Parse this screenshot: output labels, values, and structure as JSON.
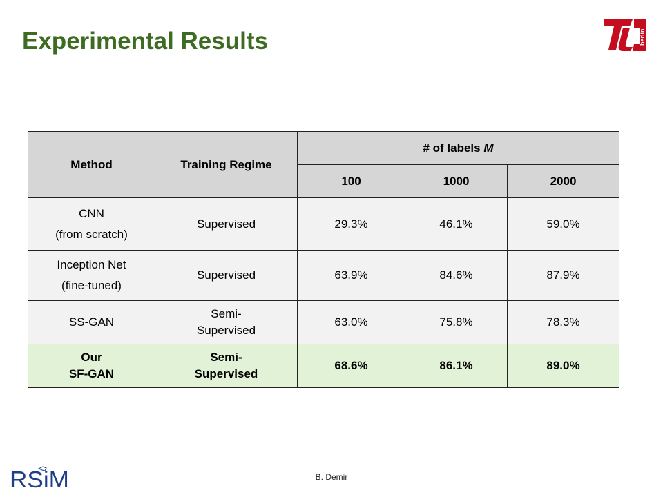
{
  "title": "Experimental Results",
  "logo_icon": "tu-berlin-logo",
  "logo_text": "berlin",
  "table": {
    "headers": {
      "method": "Method",
      "regime": "Training Regime",
      "labels_prefix": "# of labels ",
      "labels_var": "M",
      "sizes": [
        "100",
        "1000",
        "2000"
      ]
    },
    "rows": [
      {
        "method_l1": "CNN",
        "method_l2": "(from scratch)",
        "regime_l1": "Supervised",
        "regime_l2": "",
        "v100": "29.3%",
        "v1000": "46.1%",
        "v2000": "59.0%"
      },
      {
        "method_l1": "Inception Net",
        "method_l2": "(fine-tuned)",
        "regime_l1": "Supervised",
        "regime_l2": "",
        "v100": "63.9%",
        "v1000": "84.6%",
        "v2000": "87.9%"
      },
      {
        "method_l1": "SS-GAN",
        "method_l2": "",
        "regime_l1": "Semi-",
        "regime_l2": "Supervised",
        "v100": "63.0%",
        "v1000": "75.8%",
        "v2000": "78.3%"
      },
      {
        "method_l1": "Our",
        "method_l2": "SF-GAN",
        "regime_l1": "Semi-",
        "regime_l2": "Supervised",
        "v100": "68.6%",
        "v1000": "86.1%",
        "v2000": "89.0%"
      }
    ]
  },
  "footer": {
    "author": "B. Demir",
    "rsim_logo": "RSiM",
    "rsim_icon": "rsim-logo"
  },
  "colors": {
    "title": "#3d6b22",
    "header_bg": "#d6d6d6",
    "row_bg": "#f2f2f2",
    "highlight_bg": "#e1f2d6",
    "tu_red": "#c40d1e",
    "rsim_blue": "#1f3f86"
  }
}
